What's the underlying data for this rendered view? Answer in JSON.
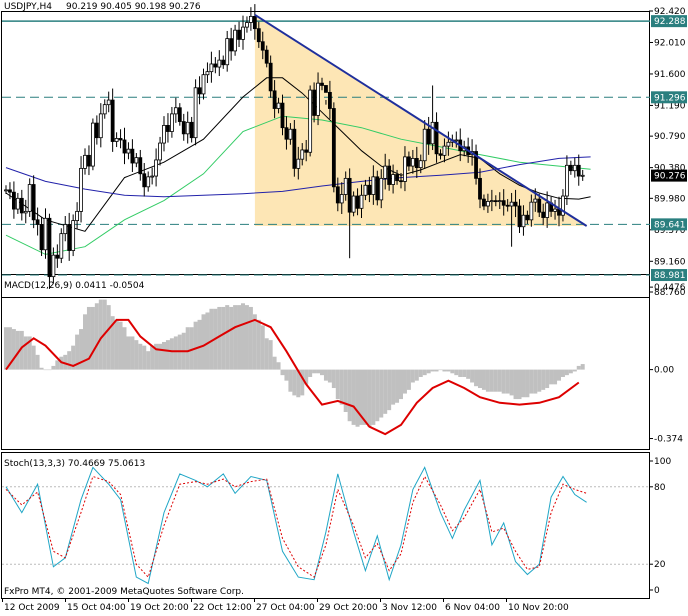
{
  "header": {
    "symbol": "USDJPY,H4",
    "ohlc": "90.219 90.405 90.198 90.276"
  },
  "watermark": "FxPro MT4, © 2001-2009 MetaQuotes Software Corp.",
  "colors": {
    "panel_bg": "#ffffff",
    "frame": "#000000",
    "candle": "#000000",
    "triangle_fill": "#fde6b5",
    "trendline": "#1f2f9c",
    "level_line": "#2a7f7f",
    "ma_fast": "#000000",
    "ma_green": "#33cc66",
    "ma_blue": "#2222aa",
    "macd_hist": "#c0c0c0",
    "macd_signal": "#dd0000",
    "stoch_main": "#20a6c6",
    "stoch_signal": "#dd0000",
    "price_badge": "#000000",
    "level_badge": "#2a7f7f"
  },
  "chart_data": [
    {
      "type": "candlestick",
      "title": "USDJPY,H4",
      "x_ticks": [
        "12 Oct 2009",
        "15 Oct 04:00",
        "19 Oct 20:00",
        "22 Oct 12:00",
        "27 Oct 04:00",
        "29 Oct 20:00",
        "3 Nov 12:00",
        "6 Nov 04:00",
        "10 Nov 20:00"
      ],
      "y_ticks": [
        "92.420",
        "92.010",
        "91.600",
        "91.190",
        "90.790",
        "90.380",
        "89.980",
        "89.570",
        "89.160",
        "88.760"
      ],
      "ylim": [
        88.76,
        92.42
      ],
      "current_price": "90.276",
      "horizontal_levels": [
        {
          "label": "92.288",
          "value": 92.288,
          "style": "solid"
        },
        {
          "label": "91.296",
          "value": 91.296,
          "style": "dashed"
        },
        {
          "label": "89.641",
          "value": 89.641,
          "style": "dashed"
        },
        {
          "label": "88.981",
          "value": 88.981,
          "style": "dashed"
        }
      ],
      "trendline": {
        "from": {
          "bar": 63,
          "price": 92.37
        },
        "to": {
          "bar": 147,
          "price": 89.62
        }
      },
      "triangle": {
        "start_bar": 63,
        "end_bar": 147,
        "top_start": 92.37,
        "bottom": 89.62
      },
      "closes": [
        90.09,
        90.06,
        89.84,
        89.98,
        89.79,
        89.81,
        90.16,
        89.7,
        89.64,
        89.31,
        89.72,
        88.96,
        89.24,
        89.2,
        89.52,
        89.64,
        89.3,
        89.69,
        89.81,
        90.37,
        90.54,
        90.4,
        90.96,
        90.77,
        91.08,
        91.2,
        91.26,
        90.72,
        90.76,
        90.74,
        90.57,
        90.62,
        90.44,
        90.51,
        90.3,
        90.13,
        90.26,
        90.27,
        90.48,
        90.7,
        90.93,
        90.85,
        91.08,
        91.16,
        90.98,
        90.82,
        90.97,
        90.77,
        91.42,
        91.34,
        91.59,
        91.63,
        91.73,
        91.69,
        91.78,
        91.72,
        92.06,
        91.9,
        92.17,
        92.05,
        92.21,
        92.27,
        92.35,
        92.19,
        92.02,
        91.91,
        91.74,
        91.38,
        91.15,
        91.22,
        90.9,
        90.75,
        90.88,
        90.37,
        90.49,
        90.61,
        90.58,
        91.39,
        91.06,
        91.48,
        91.45,
        91.36,
        91.15,
        90.13,
        89.92,
        90.03,
        90.24,
        89.8,
        90.01,
        89.85,
        90.02,
        90.15,
        90.03,
        90.26,
        89.96,
        90.24,
        90.4,
        90.16,
        90.29,
        90.21,
        90.2,
        90.52,
        90.4,
        90.5,
        90.38,
        90.47,
        90.88,
        90.69,
        90.97,
        90.56,
        90.54,
        90.66,
        90.71,
        90.74,
        90.74,
        90.6,
        90.65,
        90.55,
        90.59,
        90.24,
        89.97,
        89.88,
        89.94,
        89.95,
        89.94,
        89.95,
        89.89,
        89.88,
        89.93,
        89.88,
        89.61,
        89.76,
        89.7,
        89.93,
        89.97,
        89.8,
        89.73,
        89.92,
        89.81,
        89.84,
        89.76,
        90.01,
        90.41,
        90.34,
        90.41,
        90.27,
        90.28
      ],
      "series": [
        {
          "name": "ma_fast",
          "values": [
            [
              0,
              90.05
            ],
            [
              10,
              89.7
            ],
            [
              20,
              89.55
            ],
            [
              30,
              90.25
            ],
            [
              40,
              90.45
            ],
            [
              50,
              90.75
            ],
            [
              60,
              91.3
            ],
            [
              66,
              91.55
            ],
            [
              70,
              91.55
            ],
            [
              75,
              91.35
            ],
            [
              80,
              91.1
            ],
            [
              85,
              90.85
            ],
            [
              90,
              90.6
            ],
            [
              95,
              90.4
            ],
            [
              100,
              90.28
            ],
            [
              105,
              90.35
            ],
            [
              110,
              90.45
            ],
            [
              115,
              90.55
            ],
            [
              120,
              90.5
            ],
            [
              125,
              90.3
            ],
            [
              130,
              90.15
            ],
            [
              135,
              90.05
            ],
            [
              140,
              89.98
            ],
            [
              145,
              89.97
            ],
            [
              148,
              90.0
            ]
          ]
        },
        {
          "name": "ma_green",
          "values": [
            [
              0,
              89.5
            ],
            [
              10,
              89.25
            ],
            [
              20,
              89.35
            ],
            [
              30,
              89.7
            ],
            [
              40,
              89.95
            ],
            [
              50,
              90.3
            ],
            [
              60,
              90.85
            ],
            [
              70,
              91.05
            ],
            [
              80,
              91.0
            ],
            [
              90,
              90.9
            ],
            [
              100,
              90.75
            ],
            [
              110,
              90.65
            ],
            [
              120,
              90.55
            ],
            [
              130,
              90.45
            ],
            [
              140,
              90.4
            ],
            [
              148,
              90.36
            ]
          ]
        },
        {
          "name": "ma_blue",
          "values": [
            [
              0,
              90.38
            ],
            [
              10,
              90.2
            ],
            [
              20,
              90.1
            ],
            [
              30,
              90.02
            ],
            [
              40,
              90.0
            ],
            [
              50,
              90.02
            ],
            [
              60,
              90.04
            ],
            [
              70,
              90.07
            ],
            [
              80,
              90.14
            ],
            [
              90,
              90.2
            ],
            [
              100,
              90.25
            ],
            [
              110,
              90.28
            ],
            [
              120,
              90.32
            ],
            [
              130,
              90.42
            ],
            [
              140,
              90.5
            ],
            [
              148,
              90.52
            ]
          ]
        }
      ]
    },
    {
      "type": "bar",
      "title": "MACD(12,26,9) 0.0411 -0.0504",
      "y_ticks": [
        "0.4476",
        "0.00",
        "-0.374"
      ],
      "ylim": [
        -0.42,
        0.47
      ],
      "histogram": [
        0.23,
        0.23,
        0.22,
        0.21,
        0.21,
        0.18,
        0.18,
        0.13,
        0.08,
        0.01,
        0.0,
        0.0,
        0.02,
        0.05,
        0.07,
        0.08,
        0.1,
        0.13,
        0.19,
        0.22,
        0.3,
        0.34,
        0.34,
        0.36,
        0.38,
        0.38,
        0.35,
        0.29,
        0.27,
        0.26,
        0.23,
        0.18,
        0.18,
        0.16,
        0.14,
        0.13,
        0.1,
        0.13,
        0.14,
        0.14,
        0.15,
        0.16,
        0.17,
        0.18,
        0.19,
        0.2,
        0.23,
        0.23,
        0.26,
        0.27,
        0.3,
        0.31,
        0.33,
        0.33,
        0.34,
        0.34,
        0.35,
        0.34,
        0.35,
        0.35,
        0.36,
        0.35,
        0.34,
        0.3,
        0.27,
        0.24,
        0.17,
        0.16,
        0.07,
        0.04,
        -0.03,
        -0.06,
        -0.12,
        -0.14,
        -0.15,
        -0.14,
        -0.08,
        -0.04,
        -0.02,
        -0.02,
        -0.03,
        -0.06,
        -0.07,
        -0.1,
        -0.16,
        -0.19,
        -0.23,
        -0.28,
        -0.3,
        -0.31,
        -0.3,
        -0.3,
        -0.31,
        -0.3,
        -0.28,
        -0.26,
        -0.24,
        -0.22,
        -0.19,
        -0.18,
        -0.16,
        -0.13,
        -0.11,
        -0.07,
        -0.06,
        -0.04,
        -0.03,
        -0.02,
        -0.01,
        -0.01,
        0.0,
        -0.01,
        -0.01,
        -0.02,
        -0.03,
        -0.04,
        -0.04,
        -0.05,
        -0.07,
        -0.09,
        -0.1,
        -0.11,
        -0.12,
        -0.12,
        -0.12,
        -0.12,
        -0.13,
        -0.13,
        -0.14,
        -0.16,
        -0.16,
        -0.15,
        -0.15,
        -0.13,
        -0.13,
        -0.12,
        -0.11,
        -0.1,
        -0.08,
        -0.08,
        -0.06,
        -0.04,
        -0.03,
        -0.02,
        -0.01,
        0.02,
        0.03
      ],
      "signal": [
        [
          0,
          0.0
        ],
        [
          4,
          0.12
        ],
        [
          7,
          0.17
        ],
        [
          10,
          0.13
        ],
        [
          14,
          0.04
        ],
        [
          17,
          0.02
        ],
        [
          21,
          0.06
        ],
        [
          24,
          0.17
        ],
        [
          28,
          0.27
        ],
        [
          31,
          0.27
        ],
        [
          34,
          0.18
        ],
        [
          38,
          0.11
        ],
        [
          42,
          0.1
        ],
        [
          46,
          0.1
        ],
        [
          50,
          0.13
        ],
        [
          54,
          0.18
        ],
        [
          58,
          0.23
        ],
        [
          63,
          0.27
        ],
        [
          67,
          0.23
        ],
        [
          71,
          0.1
        ],
        [
          76,
          -0.08
        ],
        [
          80,
          -0.19
        ],
        [
          84,
          -0.17
        ],
        [
          88,
          -0.2
        ],
        [
          92,
          -0.31
        ],
        [
          96,
          -0.35
        ],
        [
          100,
          -0.3
        ],
        [
          104,
          -0.18
        ],
        [
          108,
          -0.1
        ],
        [
          112,
          -0.06
        ],
        [
          116,
          -0.1
        ],
        [
          120,
          -0.15
        ],
        [
          125,
          -0.18
        ],
        [
          130,
          -0.19
        ],
        [
          135,
          -0.18
        ],
        [
          140,
          -0.15
        ],
        [
          145,
          -0.07
        ]
      ]
    },
    {
      "type": "line",
      "title": "Stoch(13,3,3) 70.4669 75.0613",
      "y_ticks": [
        "100",
        "80",
        "20",
        "0"
      ],
      "ylim": [
        0,
        100
      ],
      "series": [
        {
          "name": "main",
          "values": [
            [
              0,
              80
            ],
            [
              4,
              60
            ],
            [
              8,
              82
            ],
            [
              12,
              18
            ],
            [
              15,
              25
            ],
            [
              19,
              70
            ],
            [
              22,
              95
            ],
            [
              26,
              82
            ],
            [
              29,
              70
            ],
            [
              33,
              10
            ],
            [
              36,
              5
            ],
            [
              40,
              60
            ],
            [
              44,
              90
            ],
            [
              48,
              85
            ],
            [
              51,
              80
            ],
            [
              55,
              90
            ],
            [
              58,
              75
            ],
            [
              62,
              88
            ],
            [
              66,
              85
            ],
            [
              70,
              30
            ],
            [
              74,
              10
            ],
            [
              78,
              8
            ],
            [
              81,
              45
            ],
            [
              84,
              90
            ],
            [
              88,
              45
            ],
            [
              91,
              15
            ],
            [
              94,
              42
            ],
            [
              97,
              8
            ],
            [
              100,
              35
            ],
            [
              103,
              78
            ],
            [
              106,
              95
            ],
            [
              110,
              60
            ],
            [
              113,
              40
            ],
            [
              116,
              62
            ],
            [
              120,
              85
            ],
            [
              123,
              35
            ],
            [
              126,
              52
            ],
            [
              129,
              22
            ],
            [
              132,
              12
            ],
            [
              135,
              20
            ],
            [
              138,
              72
            ],
            [
              141,
              88
            ],
            [
              144,
              74
            ],
            [
              147,
              68
            ]
          ]
        },
        {
          "name": "signal",
          "values": [
            [
              0,
              78
            ],
            [
              4,
              66
            ],
            [
              8,
              76
            ],
            [
              12,
              30
            ],
            [
              15,
              25
            ],
            [
              19,
              60
            ],
            [
              22,
              88
            ],
            [
              26,
              84
            ],
            [
              29,
              74
            ],
            [
              33,
              20
            ],
            [
              36,
              10
            ],
            [
              40,
              50
            ],
            [
              44,
              82
            ],
            [
              48,
              84
            ],
            [
              51,
              82
            ],
            [
              55,
              86
            ],
            [
              58,
              80
            ],
            [
              62,
              84
            ],
            [
              66,
              86
            ],
            [
              70,
              40
            ],
            [
              74,
              18
            ],
            [
              78,
              10
            ],
            [
              81,
              35
            ],
            [
              84,
              78
            ],
            [
              88,
              50
            ],
            [
              91,
              25
            ],
            [
              94,
              36
            ],
            [
              97,
              15
            ],
            [
              100,
              28
            ],
            [
              103,
              68
            ],
            [
              106,
              88
            ],
            [
              110,
              66
            ],
            [
              113,
              46
            ],
            [
              116,
              56
            ],
            [
              120,
              78
            ],
            [
              123,
              45
            ],
            [
              126,
              48
            ],
            [
              129,
              30
            ],
            [
              132,
              16
            ],
            [
              135,
              18
            ],
            [
              138,
              60
            ],
            [
              141,
              82
            ],
            [
              144,
              78
            ],
            [
              147,
              75
            ]
          ]
        }
      ]
    }
  ]
}
